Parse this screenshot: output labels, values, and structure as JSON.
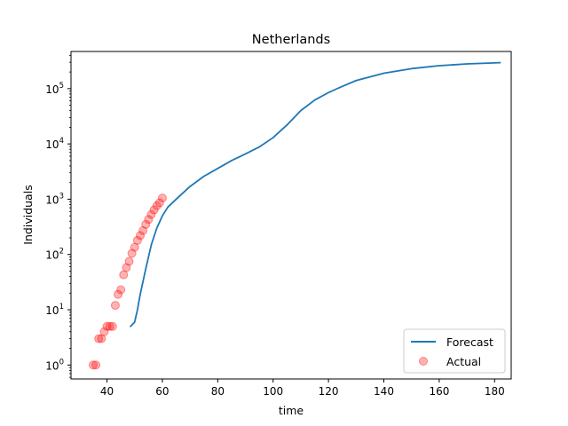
{
  "chart_data": {
    "type": "line",
    "title": "Netherlands",
    "xlabel": "time",
    "ylabel": "Individuals",
    "xlim": [
      27,
      186
    ],
    "ylim": [
      0.56,
      470000
    ],
    "yscale": "log",
    "x_ticks": [
      40,
      60,
      80,
      100,
      120,
      140,
      160,
      180
    ],
    "x_tick_labels": [
      "40",
      "60",
      "80",
      "100",
      "120",
      "140",
      "160",
      "180"
    ],
    "y_ticks": [
      1,
      10,
      100,
      1000,
      10000,
      100000
    ],
    "y_tick_labels": [
      {
        "base": "10",
        "exp": "0"
      },
      {
        "base": "10",
        "exp": "1"
      },
      {
        "base": "10",
        "exp": "2"
      },
      {
        "base": "10",
        "exp": "3"
      },
      {
        "base": "10",
        "exp": "4"
      },
      {
        "base": "10",
        "exp": "5"
      }
    ],
    "grid": false,
    "legend_position": "lower-right",
    "series": [
      {
        "name": "Forecast",
        "type": "line",
        "color": "#1f77b4",
        "x": [
          48.5,
          50,
          51,
          52,
          54,
          56,
          58,
          60,
          62,
          65,
          70,
          75,
          80,
          85,
          90,
          95,
          100,
          105,
          110,
          115,
          120,
          125,
          130,
          140,
          150,
          160,
          170,
          182
        ],
        "y": [
          5,
          6,
          10,
          19,
          55,
          150,
          300,
          500,
          720,
          1000,
          1700,
          2600,
          3600,
          5000,
          6600,
          8800,
          13000,
          22000,
          40000,
          62000,
          85000,
          110000,
          140000,
          190000,
          230000,
          260000,
          280000,
          295000
        ]
      },
      {
        "name": "Actual",
        "type": "scatter",
        "color": "#ff0000",
        "x": [
          35,
          36,
          37,
          38,
          39,
          40,
          41,
          42,
          43,
          44,
          45,
          46,
          47,
          48,
          49,
          50,
          51,
          52,
          53,
          54,
          55,
          56,
          57,
          58,
          59,
          60
        ],
        "y": [
          1,
          1,
          3,
          3,
          4,
          5,
          5,
          5,
          12,
          19,
          23,
          43,
          58,
          75,
          105,
          135,
          180,
          220,
          270,
          350,
          430,
          530,
          640,
          760,
          860,
          1050
        ]
      }
    ]
  }
}
